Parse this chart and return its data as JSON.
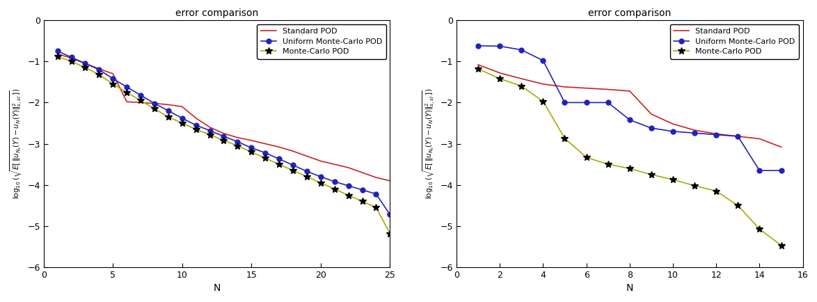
{
  "title": "error comparison",
  "ylabel": "log_{10}(E[ ||u_{Ns}(Y) - u_N(Y)||^2_{s,sl} ]^{1/2} )",
  "xlabel": "N",
  "plot1": {
    "xlim": [
      0,
      25
    ],
    "ylim": [
      -6,
      0
    ],
    "xticks": [
      0,
      5,
      10,
      15,
      20,
      25
    ],
    "yticks": [
      0,
      -1,
      -2,
      -3,
      -4,
      -5,
      -6
    ],
    "standard_pod": {
      "x": [
        1,
        2,
        3,
        4,
        5,
        6,
        7,
        8,
        9,
        10,
        11,
        12,
        13,
        14,
        15,
        16,
        17,
        18,
        19,
        20,
        21,
        22,
        23,
        24,
        25
      ],
      "y": [
        -0.82,
        -0.92,
        -1.05,
        -1.18,
        -1.3,
        -1.98,
        -2.0,
        -2.02,
        -2.05,
        -2.1,
        -2.38,
        -2.6,
        -2.75,
        -2.85,
        -2.92,
        -3.0,
        -3.08,
        -3.18,
        -3.3,
        -3.42,
        -3.5,
        -3.58,
        -3.7,
        -3.82,
        -3.9
      ]
    },
    "uniform_mc_pod": {
      "x": [
        1,
        2,
        3,
        4,
        5,
        6,
        7,
        8,
        9,
        10,
        11,
        12,
        13,
        14,
        15,
        16,
        17,
        18,
        19,
        20,
        21,
        22,
        23,
        24,
        25
      ],
      "y": [
        -0.75,
        -0.9,
        -1.05,
        -1.2,
        -1.42,
        -1.62,
        -1.82,
        -2.02,
        -2.2,
        -2.38,
        -2.55,
        -2.68,
        -2.82,
        -2.95,
        -3.1,
        -3.22,
        -3.37,
        -3.52,
        -3.67,
        -3.8,
        -3.92,
        -4.02,
        -4.12,
        -4.22,
        -4.72
      ]
    },
    "mc_pod": {
      "x": [
        1,
        2,
        3,
        4,
        5,
        6,
        7,
        8,
        9,
        10,
        11,
        12,
        13,
        14,
        15,
        16,
        17,
        18,
        19,
        20,
        21,
        22,
        23,
        24,
        25
      ],
      "y": [
        -0.88,
        -1.0,
        -1.15,
        -1.32,
        -1.55,
        -1.75,
        -1.95,
        -2.15,
        -2.35,
        -2.5,
        -2.65,
        -2.78,
        -2.92,
        -3.05,
        -3.2,
        -3.35,
        -3.5,
        -3.65,
        -3.8,
        -3.95,
        -4.1,
        -4.25,
        -4.4,
        -4.55,
        -5.18
      ]
    }
  },
  "plot2": {
    "xlim": [
      0,
      16
    ],
    "ylim": [
      -6,
      0
    ],
    "xticks": [
      0,
      2,
      4,
      6,
      8,
      10,
      12,
      14,
      16
    ],
    "yticks": [
      0,
      -1,
      -2,
      -3,
      -4,
      -5,
      -6
    ],
    "standard_pod": {
      "x": [
        1,
        2,
        3,
        4,
        5,
        6,
        7,
        8,
        9,
        10,
        11,
        12,
        13,
        14,
        15
      ],
      "y": [
        -1.08,
        -1.28,
        -1.42,
        -1.55,
        -1.62,
        -1.65,
        -1.68,
        -1.72,
        -2.28,
        -2.52,
        -2.67,
        -2.76,
        -2.82,
        -2.88,
        -3.08
      ]
    },
    "uniform_mc_pod": {
      "x": [
        1,
        2,
        3,
        4,
        5,
        6,
        7,
        8,
        9,
        10,
        11,
        12,
        13,
        14,
        15
      ],
      "y": [
        -0.62,
        -0.63,
        -0.72,
        -0.98,
        -2.0,
        -2.0,
        -2.0,
        -2.42,
        -2.62,
        -2.7,
        -2.74,
        -2.78,
        -2.82,
        -3.65,
        -3.65
      ]
    },
    "mc_pod": {
      "x": [
        1,
        2,
        3,
        4,
        5,
        6,
        7,
        8,
        9,
        10,
        11,
        12,
        13,
        14,
        15
      ],
      "y": [
        -1.18,
        -1.42,
        -1.6,
        -1.97,
        -2.87,
        -3.33,
        -3.5,
        -3.6,
        -3.75,
        -3.87,
        -4.02,
        -4.15,
        -4.5,
        -5.07,
        -5.47
      ]
    }
  },
  "colors": {
    "standard_pod": "#cc2222",
    "uniform_mc_pod": "#2222bb",
    "mc_pod": "#aaaa00"
  },
  "legend_labels": [
    "Standard POD",
    "Uniform Monte-Carlo POD",
    "Monte-Carlo POD"
  ]
}
